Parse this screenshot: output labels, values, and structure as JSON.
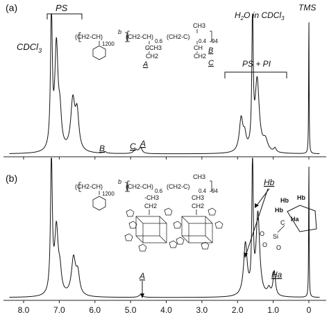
{
  "chart_data": [
    {
      "type": "line",
      "panel_label": "(a)",
      "x_ticks": [
        8.0,
        7.0,
        6.0,
        5.0,
        4.0,
        3.0,
        2.0,
        1.0,
        0
      ],
      "x_tick_labels": [
        "8.0",
        "7.0",
        "6.0",
        "5.0",
        "4.0",
        "3.0",
        "2.0",
        "1.0",
        "0"
      ],
      "xlim": [
        8.4,
        -0.3
      ],
      "baseline": 0,
      "peaks": [
        {
          "x": 7.22,
          "h": 1.0,
          "w": 0.03
        },
        {
          "x": 7.08,
          "h": 0.75,
          "w": 0.055
        },
        {
          "x": 6.98,
          "h": 0.22,
          "w": 0.05
        },
        {
          "x": 6.62,
          "h": 0.36,
          "w": 0.07
        },
        {
          "x": 6.5,
          "h": 0.26,
          "w": 0.06
        },
        {
          "x": 5.72,
          "h": 0.012,
          "w": 0.05
        },
        {
          "x": 4.86,
          "h": 0.03,
          "w": 0.06
        },
        {
          "x": 4.72,
          "h": 0.045,
          "w": 0.05
        },
        {
          "x": 1.9,
          "h": 0.24,
          "w": 0.06
        },
        {
          "x": 1.8,
          "h": 0.1,
          "w": 0.05
        },
        {
          "x": 1.58,
          "h": 1.0,
          "w": 0.022
        },
        {
          "x": 1.45,
          "h": 0.52,
          "w": 0.07
        },
        {
          "x": 1.22,
          "h": 0.08,
          "w": 0.08
        },
        {
          "x": 0.95,
          "h": 0.03,
          "w": 0.04
        },
        {
          "x": 0.0,
          "h": 1.0,
          "w": 0.008
        }
      ],
      "annotations": [
        {
          "text": "CDCl3",
          "at": 7.26
        },
        {
          "text": "PS",
          "range": [
            7.2,
            6.3
          ]
        },
        {
          "text": "B",
          "at": 5.7
        },
        {
          "text": "C",
          "at": 4.86
        },
        {
          "text": "A",
          "at": 4.72
        },
        {
          "text": "H2O in CDCl3",
          "at": 1.56
        },
        {
          "text": "PS + PI",
          "range": [
            2.4,
            0.9
          ]
        },
        {
          "text": "TMS",
          "at": 0.0
        }
      ]
    },
    {
      "type": "line",
      "panel_label": "(b)",
      "x_ticks": [
        8.0,
        7.0,
        6.0,
        5.0,
        4.0,
        3.0,
        2.0,
        1.0,
        0
      ],
      "x_tick_labels": [
        "8.0",
        "7.0",
        "6.0",
        "5.0",
        "4.0",
        "3.0",
        "2.0",
        "1.0",
        "0"
      ],
      "xlim": [
        8.4,
        -0.3
      ],
      "baseline": 0,
      "peaks": [
        {
          "x": 7.22,
          "h": 1.0,
          "w": 0.03
        },
        {
          "x": 7.08,
          "h": 0.48,
          "w": 0.06
        },
        {
          "x": 6.98,
          "h": 0.14,
          "w": 0.05
        },
        {
          "x": 6.6,
          "h": 0.27,
          "w": 0.07
        },
        {
          "x": 6.48,
          "h": 0.15,
          "w": 0.06
        },
        {
          "x": 4.72,
          "h": 0.02,
          "w": 0.06
        },
        {
          "x": 1.78,
          "h": 0.38,
          "w": 0.06
        },
        {
          "x": 1.58,
          "h": 1.0,
          "w": 0.022
        },
        {
          "x": 1.43,
          "h": 0.6,
          "w": 0.06
        },
        {
          "x": 1.12,
          "h": 0.05,
          "w": 0.05
        },
        {
          "x": 0.97,
          "h": 0.18,
          "w": 0.04
        },
        {
          "x": 0.0,
          "h": 1.0,
          "w": 0.008
        }
      ],
      "annotations": [
        {
          "text": "A",
          "at": 4.72
        },
        {
          "text": "Hb",
          "at": 1.7
        },
        {
          "text": "Ha",
          "at": 0.97
        }
      ]
    }
  ],
  "labels": {
    "panel_a": "(a)",
    "panel_b": "(b)",
    "cdcl3": "CDCl",
    "cdcl3_sub": "3",
    "ps": "PS",
    "h2o": "H",
    "h2o_sub": "2",
    "h2o_rest": "O in CDCl",
    "h2o_sub2": "3",
    "tms": "TMS",
    "ps_pi": "PS + PI",
    "peak_b": "B",
    "peak_c": "C",
    "peak_a": "A",
    "peak_a_b": "A",
    "hb": "Hb",
    "ha": "Ha"
  },
  "structure_a": {
    "chain": "(CH2-CH)",
    "b": "b",
    "n1200": "1200",
    "seg2": "(CH2-CH)",
    "sub06": "0.6",
    "seg3": "(CH2-C)",
    "sub04": "0.4",
    "n94": "94",
    "ch3": "CH3",
    "c": "C",
    "ch3b": "-CH3",
    "ch": "CH",
    "ch2": "CH2",
    "lbl_a": "A",
    "lbl_b": "B",
    "lbl_c": "C"
  },
  "structure_b": {
    "chain": "(CH2-CH)",
    "b": "b",
    "n1200": "1200",
    "seg2": "(CH2-CH)",
    "sub06": "0.6",
    "seg3": "(CH2-C)",
    "sub04": "0.4",
    "n94": "94",
    "ch3": "CH3",
    "chch3": "-CH3",
    "ch2": "CH2"
  },
  "inset_b": {
    "hb1": "Hb",
    "hb2": "Hb",
    "hb3": "Hb",
    "ha": "Ha",
    "c": "C",
    "si": "Si",
    "o1": "O",
    "o2": "O",
    "o3": "O"
  }
}
